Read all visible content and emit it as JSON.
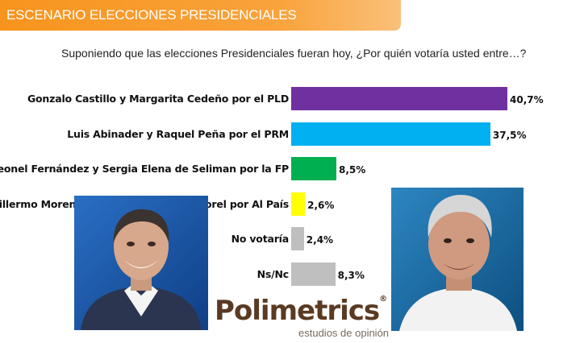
{
  "header": {
    "title": "ESCENARIO ELECCIONES PRESIDENCIALES"
  },
  "question": "Suponiendo que las elecciones Presidenciales fueran hoy, ¿Por quién votaría usted entre…?",
  "chart_data": {
    "type": "bar",
    "orientation": "horizontal",
    "categories": [
      "Gonzalo Castillo y Margarita Cedeño por el PLD",
      "Luis Abinader y Raquel Peña por el PRM",
      "Leonel Fernández y Sergia Elena de Seliman por la FP",
      "Guillermo Moreno y Agustin Gonzalez Morel por Al País",
      "No votaría",
      "Ns/Nc"
    ],
    "values": [
      40.7,
      37.5,
      8.5,
      2.6,
      2.4,
      8.3
    ],
    "data_labels": [
      "40,7%",
      "37,5%",
      "8,5%",
      "2,6%",
      "2,4%",
      "8,3%"
    ],
    "colors": [
      "#7030a0",
      "#00b0f0",
      "#00b050",
      "#ffff00",
      "#bfbfbf",
      "#bfbfbf"
    ],
    "xlim": [
      0,
      40.7
    ],
    "grid": false,
    "legend": "none"
  },
  "logo": {
    "brand": "Polimetrics",
    "registered": "®",
    "tagline": "estudios de opinión"
  },
  "photos": [
    {
      "name": "left-portrait",
      "icon": "person-photo"
    },
    {
      "name": "right-portrait",
      "icon": "person-photo"
    }
  ]
}
